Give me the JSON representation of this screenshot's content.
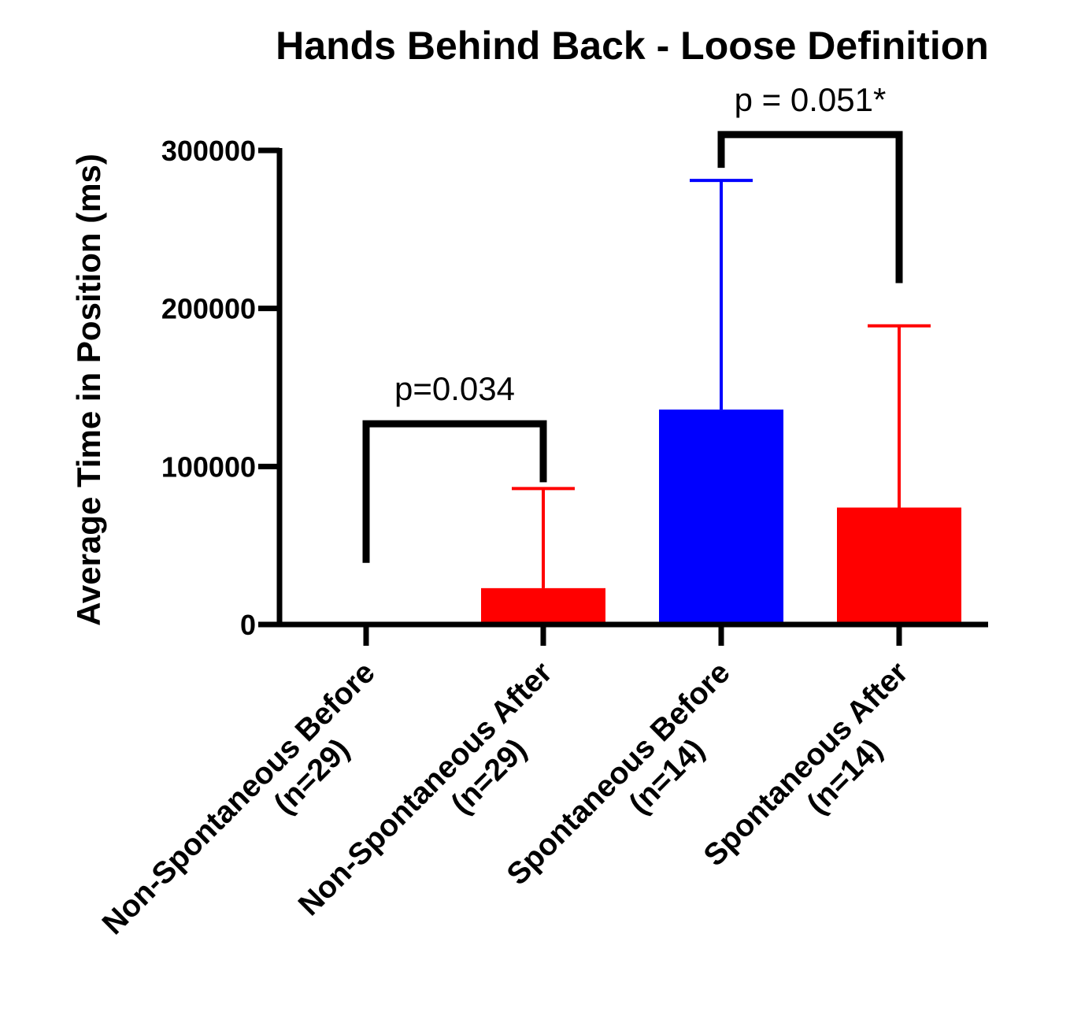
{
  "chart_data": {
    "type": "bar",
    "title": "Hands Behind Back - Loose Definition",
    "xlabel": "",
    "ylabel": "Average Time in Position (ms)",
    "ylim": [
      0,
      300000
    ],
    "yticks": [
      0,
      100000,
      200000,
      300000
    ],
    "ytick_labels": [
      "0",
      "100000",
      "200000",
      "300000"
    ],
    "grid": false,
    "categories": [
      [
        "Non-Spontaneous Before",
        "(n=29)"
      ],
      [
        "Non-Spontaneous After",
        "(n=29)"
      ],
      [
        "Spontaneous Before",
        "(n=14)"
      ],
      [
        "Spontaneous After",
        "(n=14)"
      ]
    ],
    "values": [
      0,
      23000,
      136000,
      74000
    ],
    "error_upper": [
      0,
      86000,
      281000,
      189000
    ],
    "bar_colors": [
      "#ff0000",
      "#ff0000",
      "#0000ff",
      "#ff0000"
    ],
    "annotations": [
      {
        "label": "p=0.034",
        "from": 0,
        "to": 1,
        "left_end": 39000,
        "right_end": 90000,
        "bracket_top": 127000
      },
      {
        "label": "p = 0.051*",
        "from": 2,
        "to": 3,
        "left_end": 289000,
        "right_end": 216000,
        "bracket_top": 310000
      }
    ]
  }
}
